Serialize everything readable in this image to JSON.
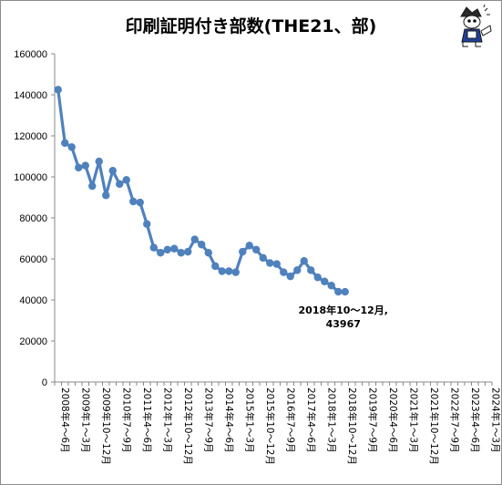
{
  "chart_data": {
    "type": "line",
    "title": "印刷証明付き部数(THE21、部)",
    "ylim": [
      0,
      160000
    ],
    "yticks": [
      0,
      20000,
      40000,
      60000,
      80000,
      100000,
      120000,
      140000,
      160000
    ],
    "ytick_labels": [
      "0",
      "20000",
      "40000",
      "60000",
      "80000",
      "100000",
      "120000",
      "140000",
      "160000"
    ],
    "grid": false,
    "legend": "none",
    "line_color": "#4F81BD",
    "tick_labels": [
      "2008年4～6月",
      "2009年1～3月",
      "2009年10～12月",
      "2010年7～9月",
      "2011年4～6月",
      "2012年1～3月",
      "2012年10～12月",
      "2013年7～9月",
      "2014年4～6月",
      "2015年1～3月",
      "2015年10～12月",
      "2016年7～9月",
      "2017年4～6月",
      "2018年1～3月",
      "2018年10～12月",
      "2019年7～9月",
      "2020年4～6月",
      "2021年1～3月",
      "2021年10～12月",
      "2022年7～9月",
      "2023年4～6月",
      "2024年1～3月"
    ],
    "periods_total": 64,
    "values": [
      142500,
      116500,
      114500,
      104500,
      105500,
      95500,
      107500,
      91000,
      103000,
      96500,
      98500,
      88000,
      87500,
      77000,
      65500,
      63000,
      64500,
      65000,
      63000,
      63500,
      69500,
      67000,
      63000,
      56500,
      54000,
      54000,
      53500,
      63500,
      66500,
      64500,
      60500,
      58000,
      57500,
      53500,
      51500,
      54500,
      59000,
      54500,
      51000,
      49000,
      47000,
      44000,
      43967
    ],
    "annotation": {
      "line1": "2018年10～12月,",
      "line2": "43967"
    }
  }
}
